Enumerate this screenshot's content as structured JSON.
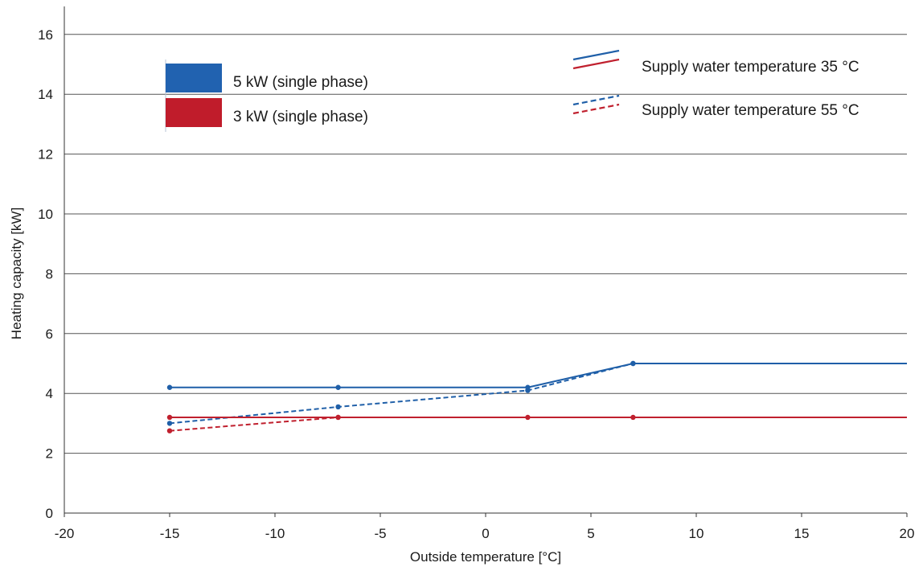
{
  "chart_data": {
    "type": "line",
    "title": "",
    "xlabel": "Outside temperature [°C]",
    "ylabel": "Heating capacity [kW]",
    "xlim": [
      -20,
      20
    ],
    "ylim": [
      0,
      17
    ],
    "x_ticks": [
      -20,
      -15,
      -10,
      -5,
      0,
      5,
      10,
      15,
      20
    ],
    "y_ticks": [
      0,
      2,
      4,
      6,
      8,
      10,
      12,
      14,
      16
    ],
    "x_tick_labels": [
      "-20",
      "-15",
      "-10",
      "-5",
      "0",
      "5",
      "10",
      "15",
      "20"
    ],
    "y_tick_labels": [
      "0",
      "2",
      "4",
      "6",
      "8",
      "10",
      "12",
      "14",
      "16"
    ],
    "grid": "horizontal",
    "colors": {
      "blue": "#1f5fa8",
      "red": "#c0202e",
      "grid": "#555555"
    },
    "legend_units": {
      "placement": "top-left",
      "entries": [
        {
          "label": "5 kW (single phase)",
          "color": "#2162b0"
        },
        {
          "label": "3 kW (single phase)",
          "color": "#c01c2b"
        }
      ]
    },
    "legend_styles": {
      "placement": "top-right",
      "entries": [
        {
          "label": "Supply water temperature 35 °C",
          "dash": "solid"
        },
        {
          "label": "Supply water temperature 55 °C",
          "dash": "dashed"
        }
      ]
    },
    "series": [
      {
        "unit": "5 kW",
        "supply": "35 °C",
        "color": "#1f5fa8",
        "dash": "solid",
        "x": [
          -15,
          -7,
          2,
          7,
          20
        ],
        "y": [
          4.2,
          4.2,
          4.2,
          5.0,
          5.0
        ],
        "markers": [
          true,
          true,
          true,
          true,
          false
        ]
      },
      {
        "unit": "5 kW",
        "supply": "55 °C",
        "color": "#1f5fa8",
        "dash": "dashed",
        "x": [
          -15,
          -7,
          2,
          7
        ],
        "y": [
          3.0,
          3.55,
          4.1,
          5.0
        ],
        "markers": [
          true,
          true,
          true,
          true
        ]
      },
      {
        "unit": "3 kW",
        "supply": "35 °C",
        "color": "#c0202e",
        "dash": "solid",
        "x": [
          -15,
          -7,
          2,
          7,
          20
        ],
        "y": [
          3.2,
          3.2,
          3.2,
          3.2,
          3.2
        ],
        "markers": [
          true,
          true,
          true,
          true,
          false
        ]
      },
      {
        "unit": "3 kW",
        "supply": "55 °C",
        "color": "#c0202e",
        "dash": "dashed",
        "x": [
          -15,
          -7
        ],
        "y": [
          2.75,
          3.2
        ],
        "markers": [
          true,
          true
        ]
      }
    ]
  }
}
